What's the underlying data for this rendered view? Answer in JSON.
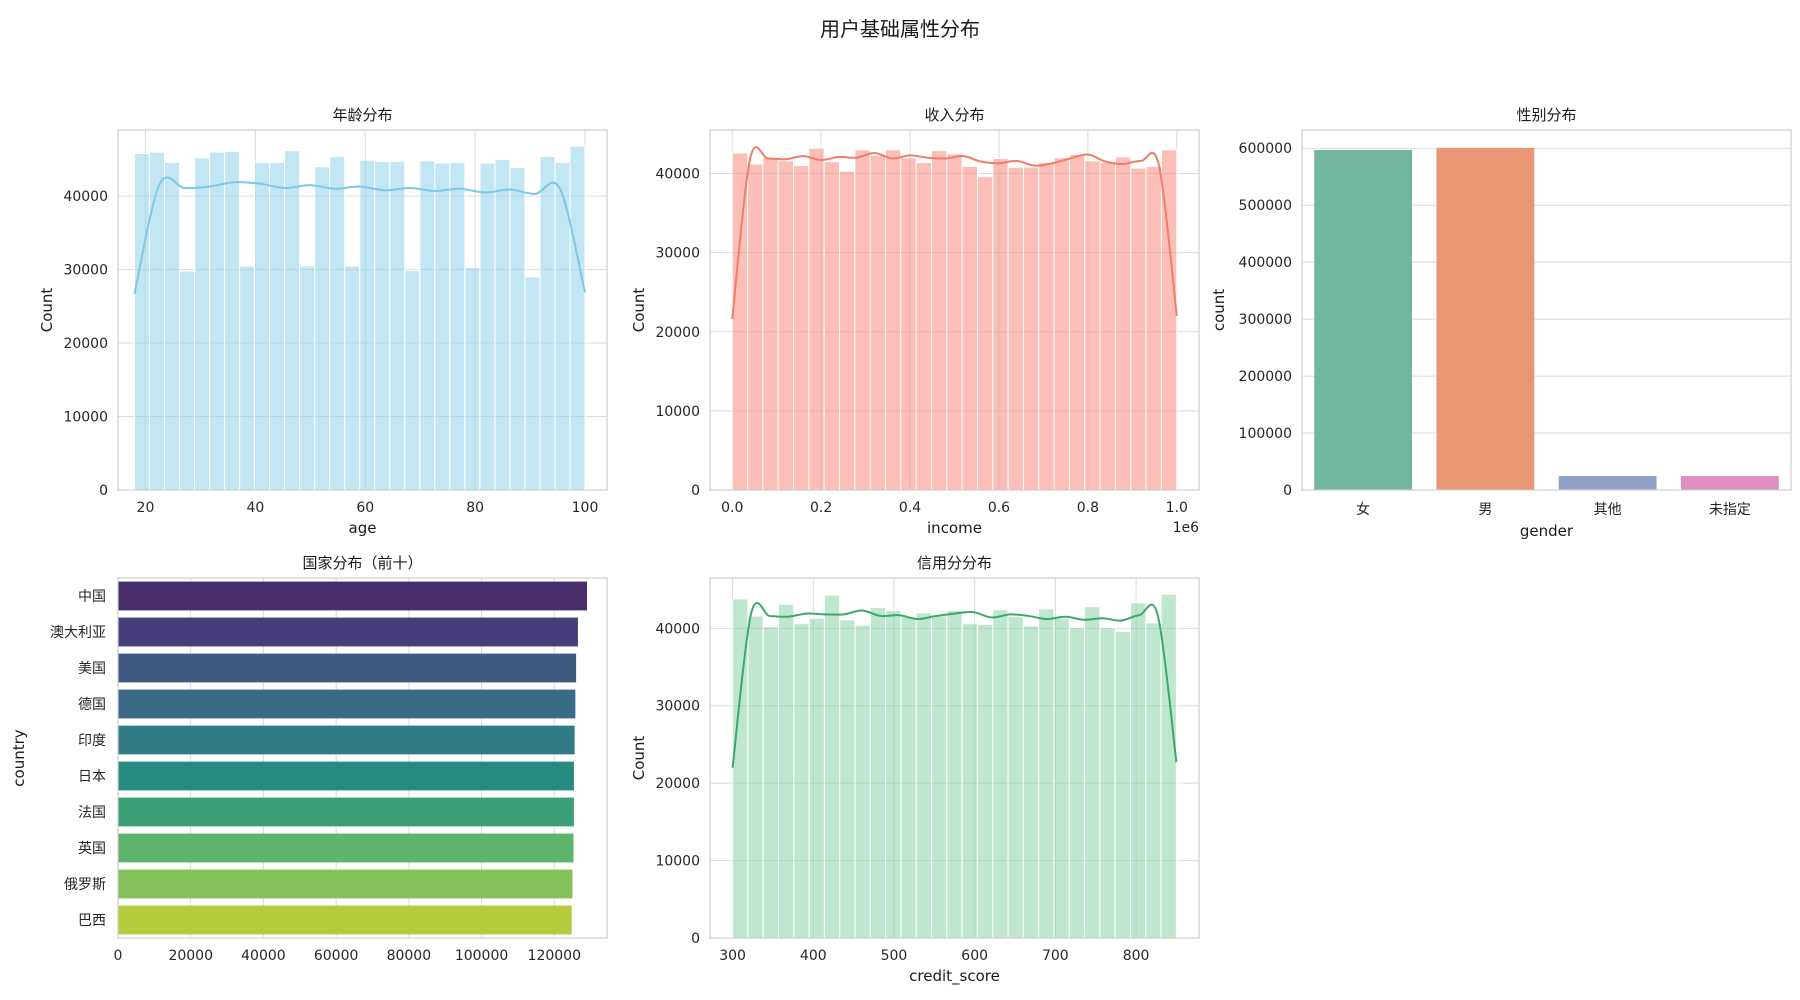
{
  "figure": {
    "title": "用户基础属性分布"
  },
  "chart_data": [
    {
      "id": "age",
      "type": "bar",
      "subtype": "histogram-with-kde",
      "title": "年龄分布",
      "xlabel": "age",
      "ylabel": "Count",
      "xlim": [
        15,
        104
      ],
      "ylim": [
        0,
        49000
      ],
      "xticks": [
        20,
        40,
        60,
        80,
        100
      ],
      "yticks": [
        0,
        10000,
        20000,
        30000,
        40000
      ],
      "bin_edges": [
        18,
        100
      ],
      "values": [
        45800,
        46000,
        44600,
        29800,
        45200,
        46000,
        46100,
        30500,
        44600,
        44600,
        46200,
        30500,
        44000,
        45400,
        30500,
        44900,
        44700,
        44700,
        29900,
        44800,
        44500,
        44600,
        30300,
        44500,
        45000,
        43900,
        29000,
        45400,
        44600,
        46800
      ],
      "kde": [
        26700,
        41600,
        41100,
        41300,
        41900,
        41700,
        41100,
        41500,
        41000,
        41300,
        40800,
        41100,
        40700,
        41000,
        40500,
        40900,
        40300,
        41000,
        26900
      ],
      "color": "#87ceeb",
      "line_color": "#7ec8e6",
      "grid": true
    },
    {
      "id": "income",
      "type": "bar",
      "subtype": "histogram-with-kde",
      "title": "收入分布",
      "xlabel": "income",
      "ylabel": "Count",
      "offset_text": "1e6",
      "xlim": [
        -0.05,
        1.05
      ],
      "ylim": [
        0,
        45500
      ],
      "xticks": [
        0.0,
        0.2,
        0.4,
        0.6,
        0.8,
        1.0
      ],
      "xtick_labels": [
        "0.0",
        "0.2",
        "0.4",
        "0.6",
        "0.8",
        "1.0"
      ],
      "yticks": [
        0,
        10000,
        20000,
        30000,
        40000
      ],
      "bin_edges": [
        0,
        1
      ],
      "values": [
        42600,
        41200,
        42000,
        41600,
        41000,
        43200,
        41500,
        40300,
        43000,
        42300,
        43000,
        42000,
        41400,
        42900,
        42500,
        40900,
        39600,
        41900,
        40800,
        40800,
        41400,
        42000,
        42400,
        41600,
        41400,
        42100,
        40700,
        40900,
        43000
      ],
      "kde": [
        21600,
        41800,
        41900,
        41800,
        42200,
        41700,
        42100,
        42000,
        42600,
        41900,
        42300,
        42000,
        41900,
        42200,
        41500,
        41300,
        41600,
        41000,
        41300,
        41900,
        42400,
        41500,
        41200,
        41600,
        41000,
        22000
      ],
      "color": "#fa8072",
      "line_color": "#f07c6c",
      "grid": true
    },
    {
      "id": "gender",
      "type": "bar",
      "title": "性别分布",
      "xlabel": "gender",
      "ylabel": "count",
      "ylim": [
        0,
        632000
      ],
      "yticks": [
        0,
        100000,
        200000,
        300000,
        400000,
        500000,
        600000
      ],
      "categories": [
        "女",
        "男",
        "其他",
        "未指定"
      ],
      "values": [
        597000,
        600500,
        24500,
        24500
      ],
      "colors": [
        "#72b6a0",
        "#e99674",
        "#8fa1c7",
        "#de8ec2"
      ],
      "grid": true
    },
    {
      "id": "country",
      "type": "bar",
      "orientation": "horizontal",
      "title": "国家分布（前十）",
      "xlabel": "",
      "ylabel": "country",
      "xlim": [
        0,
        134500
      ],
      "xticks": [
        0,
        20000,
        40000,
        60000,
        80000,
        100000,
        120000
      ],
      "categories": [
        "中国",
        "澳大利亚",
        "美国",
        "德国",
        "印度",
        "日本",
        "法国",
        "英国",
        "俄罗斯",
        "巴西"
      ],
      "values": [
        129000,
        126500,
        126000,
        125800,
        125600,
        125400,
        125400,
        125300,
        125000,
        124800
      ],
      "colors": [
        "#472d6a",
        "#453e7a",
        "#405a82",
        "#3a6a86",
        "#317c86",
        "#288b82",
        "#3b9f77",
        "#5db56b",
        "#85c15a",
        "#b5ca3c"
      ],
      "grid": true
    },
    {
      "id": "credit",
      "type": "bar",
      "subtype": "histogram-with-kde",
      "title": "信用分分布",
      "xlabel": "credit_score",
      "ylabel": "Count",
      "xlim": [
        272,
        878
      ],
      "ylim": [
        0,
        46500
      ],
      "xticks": [
        300,
        400,
        500,
        600,
        700,
        800
      ],
      "yticks": [
        0,
        10000,
        20000,
        30000,
        40000
      ],
      "bin_edges": [
        300,
        850
      ],
      "values": [
        43800,
        41600,
        40200,
        43100,
        40600,
        41300,
        44300,
        41100,
        40400,
        42700,
        42300,
        41500,
        42000,
        41600,
        42300,
        40600,
        40500,
        42400,
        41500,
        40300,
        42500,
        41300,
        40100,
        42800,
        40100,
        39600,
        43300,
        40700,
        44400
      ],
      "kde": [
        22000,
        41900,
        41600,
        41500,
        41900,
        41800,
        41800,
        42300,
        41600,
        41700,
        41200,
        41600,
        41900,
        42100,
        41400,
        41800,
        41600,
        41200,
        41500,
        41100,
        41300,
        41000,
        41700,
        41600,
        22700
      ],
      "color": "#7fcf9f",
      "line_color": "#3aaa6a",
      "grid": true
    }
  ]
}
